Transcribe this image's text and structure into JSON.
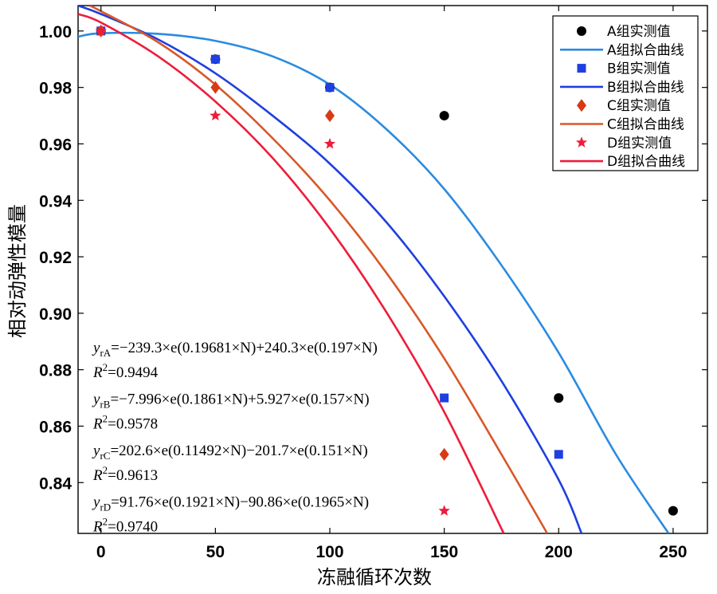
{
  "chart_data": {
    "type": "scatter",
    "xlabel": "冻融循环次数",
    "ylabel": "相对动弹性模量",
    "xlim": [
      -10,
      265
    ],
    "ylim": [
      0.822,
      1.009
    ],
    "xticks": [
      0,
      50,
      100,
      150,
      200,
      250
    ],
    "yticks": [
      0.84,
      0.86,
      0.88,
      0.9,
      0.92,
      0.94,
      0.96,
      0.98,
      1.0
    ],
    "ytick_labels": [
      "0.84",
      "0.86",
      "0.88",
      "0.90",
      "0.92",
      "0.94",
      "0.96",
      "0.98",
      "1.00"
    ],
    "xtick_labels": [
      "0",
      "50",
      "100",
      "150",
      "200",
      "250"
    ],
    "grid": false,
    "legend_position": "top-right",
    "series": [
      {
        "group": "A",
        "point_label": "A组实测值",
        "curve_label": "A组拟合曲线",
        "marker": "circle",
        "marker_color": "#000000",
        "line_color": "#2a8be0",
        "x": [
          0,
          50,
          100,
          150,
          200,
          250
        ],
        "y": [
          1.0,
          0.99,
          0.98,
          0.97,
          0.87,
          0.83
        ],
        "equation_lhs": "y",
        "equation_sub": "rA",
        "equation_rhs": "=−239.3×e(0.19681×N)+240.3×e(0.197×N)",
        "r2_text": "R",
        "r2_value": "=0.9494",
        "curve": {
          "a": -239.3,
          "b": 0.19681,
          "c": 240.3,
          "d": 0.197
        },
        "curve_display": {
          "x": [
            -10,
            0,
            25,
            50,
            75,
            100,
            125,
            150,
            175,
            200,
            225,
            248
          ],
          "y": [
            0.998,
            0.9992,
            0.999,
            0.9965,
            0.991,
            0.981,
            0.965,
            0.944,
            0.917,
            0.886,
            0.85,
            0.822
          ]
        }
      },
      {
        "group": "B",
        "point_label": "B组实测值",
        "curve_label": "B组拟合曲线",
        "marker": "square",
        "marker_color": "#1f3fe0",
        "line_color": "#1f3fe0",
        "x": [
          0,
          50,
          100,
          150,
          200
        ],
        "y": [
          1.0,
          0.99,
          0.98,
          0.87,
          0.85
        ],
        "equation_lhs": "y",
        "equation_sub": "rB",
        "equation_rhs": "=−7.996×e(0.1861×N)+5.927×e(0.157×N)",
        "r2_text": "R",
        "r2_value": "=0.9578",
        "curve": {
          "a": -7.996,
          "b": 0.1861,
          "c": 5.927,
          "d": 0.157
        },
        "curve_display": {
          "x": [
            -10,
            0,
            25,
            50,
            75,
            100,
            125,
            150,
            175,
            200,
            210
          ],
          "y": [
            1.009,
            1.006,
            0.997,
            0.985,
            0.97,
            0.953,
            0.932,
            0.906,
            0.876,
            0.841,
            0.822
          ]
        }
      },
      {
        "group": "C",
        "point_label": "C组实测值",
        "curve_label": "C组拟合曲线",
        "marker": "diamond",
        "marker_color": "#d83a14",
        "line_color": "#d8582a",
        "x": [
          0,
          50,
          100,
          150
        ],
        "y": [
          1.0,
          0.98,
          0.97,
          0.85
        ],
        "equation_lhs": "y",
        "equation_sub": "rC",
        "equation_rhs": "=202.6×e(0.11492×N)−201.7×e(0.151×N)",
        "r2_text": "R",
        "r2_value": "=0.9613",
        "curve": {
          "a": 202.6,
          "b": 0.11492,
          "c": -201.7,
          "d": 0.151
        },
        "curve_display": {
          "x": [
            -5,
            0,
            25,
            50,
            75,
            100,
            125,
            150,
            175,
            195
          ],
          "y": [
            1.009,
            1.007,
            0.996,
            0.981,
            0.962,
            0.94,
            0.914,
            0.884,
            0.85,
            0.822
          ]
        }
      },
      {
        "group": "D",
        "point_label": "D组实测值",
        "curve_label": "D组拟合曲线",
        "marker": "star",
        "marker_color": "#ee1c3a",
        "line_color": "#ee1c3a",
        "x": [
          0,
          50,
          100,
          150
        ],
        "y": [
          1.0,
          0.97,
          0.96,
          0.83
        ],
        "equation_lhs": "y",
        "equation_sub": "rD",
        "equation_rhs": "=91.76×e(0.1921×N)−90.86×e(0.1965×N)",
        "r2_text": "R",
        "r2_value": "=0.9740",
        "curve": {
          "a": 91.76,
          "b": 0.1921,
          "c": -90.86,
          "d": 0.1965
        },
        "curve_display": {
          "x": [
            -10,
            0,
            25,
            50,
            75,
            100,
            125,
            150,
            176
          ],
          "y": [
            1.006,
            1.003,
            0.991,
            0.975,
            0.955,
            0.93,
            0.9,
            0.865,
            0.822
          ]
        }
      }
    ]
  }
}
